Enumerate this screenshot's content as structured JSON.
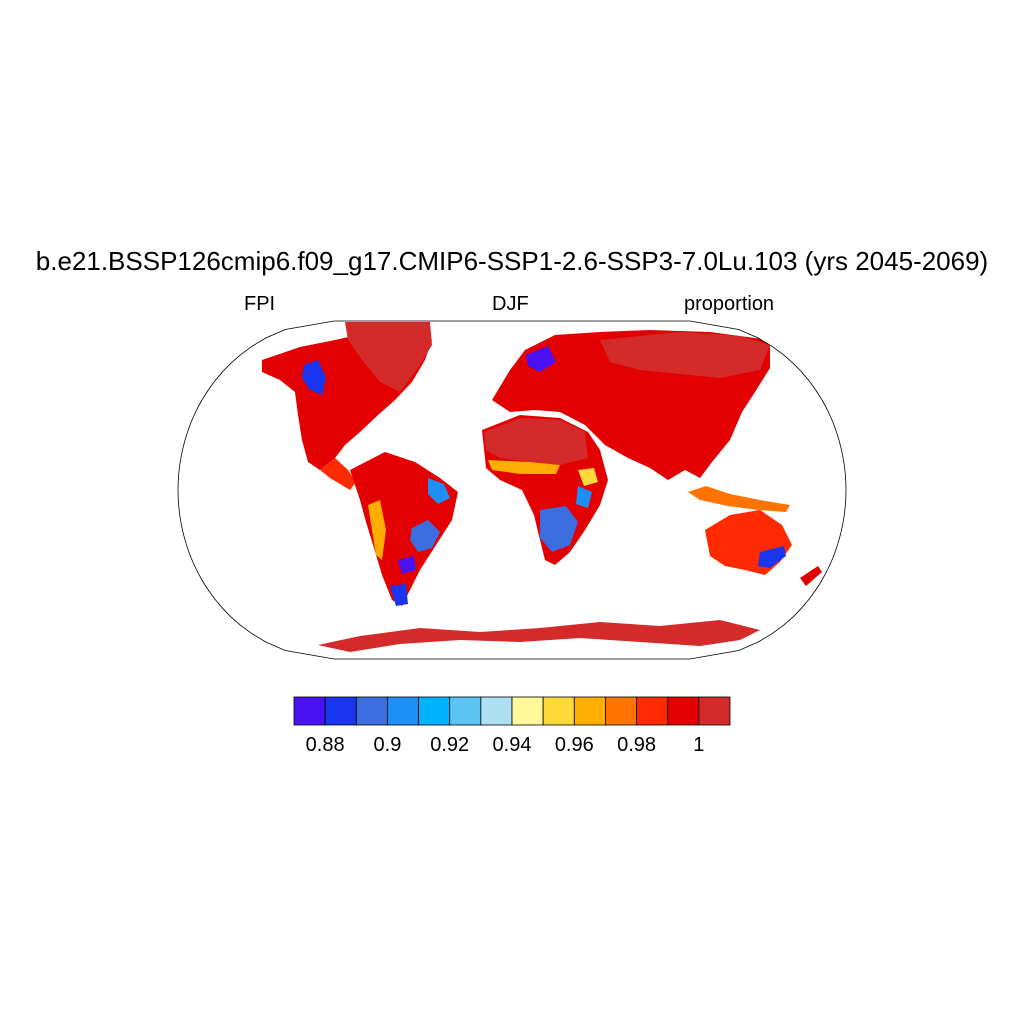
{
  "title": "b.e21.BSSP126cmip6.f09_g17.CMIP6-SSP1-2.6-SSP3-7.0Lu.103 (yrs 2045-2069)",
  "left_label": "FPI",
  "center_label": "DJF",
  "right_label": "proportion",
  "projection": "robinson",
  "colorbar": {
    "colors": [
      "#4a12f2",
      "#1a35ef",
      "#3c6ee0",
      "#1e8ff6",
      "#00b3ff",
      "#5bc4f4",
      "#aee0f4",
      "#fff79a",
      "#ffd93a",
      "#ffad00",
      "#ff7400",
      "#ff2a00",
      "#e20000",
      "#d42a2a"
    ],
    "tick_labels": [
      "0.88",
      "0.9",
      "0.92",
      "0.94",
      "0.96",
      "0.98",
      "1"
    ]
  }
}
